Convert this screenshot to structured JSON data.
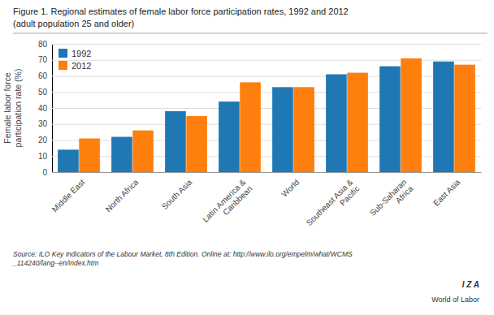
{
  "chart_data": {
    "type": "bar",
    "title": "Figure 1. Regional estimates of female labor force participation rates, 1992 and 2012",
    "subtitle": "(adult population 25 and older)",
    "categories": [
      "Middle East",
      "North Africa",
      "South Asia",
      "Latin America &\nCaribbean",
      "World",
      "Southeast Asia &\nPacific",
      "Sub-Saharan\nAfrica",
      "East Asia"
    ],
    "series": [
      {
        "name": "1992",
        "values": [
          14,
          22,
          38,
          44,
          53,
          61,
          66,
          69
        ]
      },
      {
        "name": "2012",
        "values": [
          21,
          26,
          35,
          56,
          53,
          62,
          71,
          67
        ]
      }
    ],
    "y_label": "Female labor force\nparticipation rate (%)",
    "ylim": [
      0,
      80
    ],
    "yticks": [
      0,
      10,
      20,
      30,
      40,
      50,
      60,
      70,
      80
    ],
    "grid": true,
    "legend": "top-left",
    "annotations": [
      "Source: ILO Key Indicators of the Labour Market, 8th Edition. Online at: http://www.ilo.org/empelm/what/WCMS\n_114240/lang--en/index.htm",
      "I Z A",
      "World of Labor"
    ]
  }
}
